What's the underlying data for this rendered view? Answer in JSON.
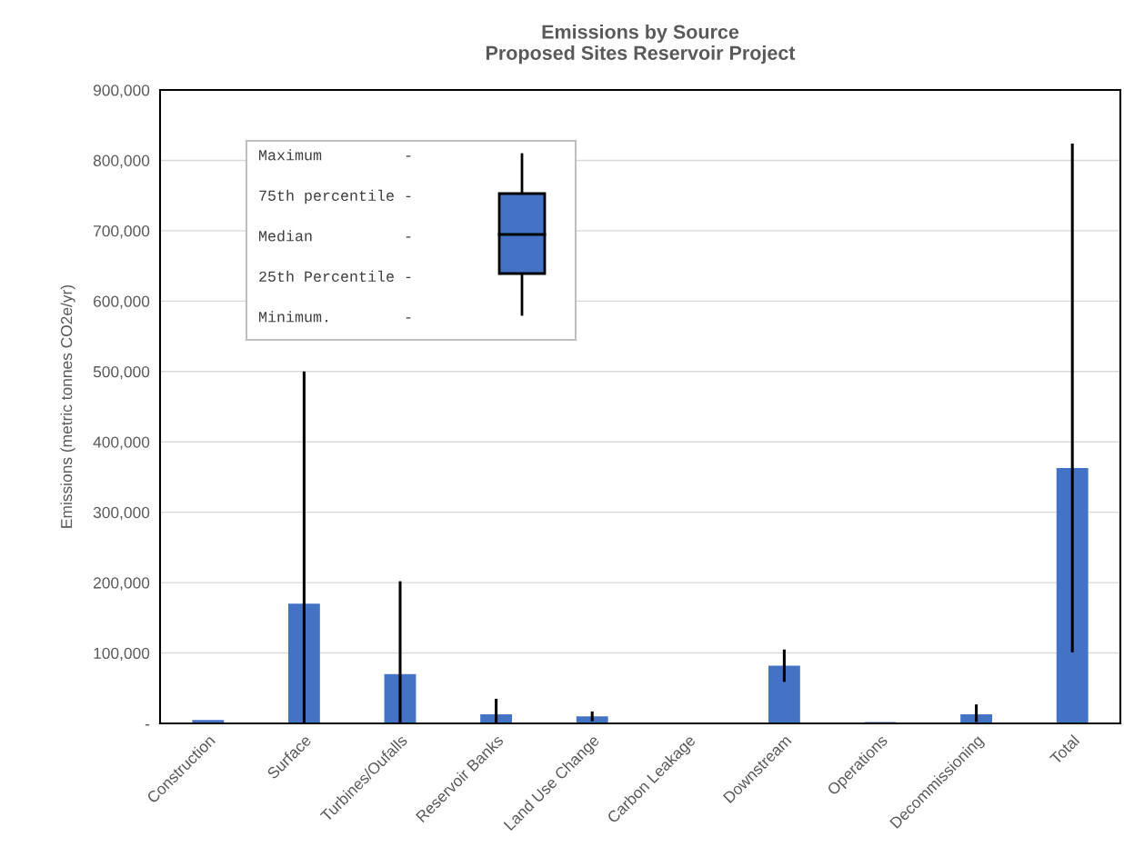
{
  "chart_data": {
    "type": "bar",
    "title": "Emissions by Source\nProposed Sites Reservoir Project",
    "ylabel": "Emissions (metric tonnes CO2e/yr)",
    "categories": [
      "Construction",
      "Surface",
      "Turbines/Oufalls",
      "Reservoir Banks",
      "Land Use Change",
      "Carbon Leakage",
      "Downstream",
      "Operations",
      "Decommissioning",
      "Total"
    ],
    "values": [
      5000,
      170000,
      70000,
      13000,
      10000,
      null,
      82000,
      2000,
      13000,
      363000
    ],
    "errors": [
      null,
      [
        0,
        498000
      ],
      [
        0,
        200000
      ],
      [
        0,
        33000
      ],
      [
        5000,
        15000
      ],
      null,
      [
        61000,
        103000
      ],
      null,
      [
        4000,
        25000
      ],
      [
        103000,
        822000
      ]
    ],
    "color": "#4472c4",
    "ylim": [
      0,
      900000
    ],
    "yticks": [
      {
        "value": 0,
        "label": "-"
      },
      {
        "value": 100000,
        "label": "100,000"
      },
      {
        "value": 200000,
        "label": "200,000"
      },
      {
        "value": 300000,
        "label": "300,000"
      },
      {
        "value": 400000,
        "label": "400,000"
      },
      {
        "value": 500000,
        "label": "500,000"
      },
      {
        "value": 600000,
        "label": "600,000"
      },
      {
        "value": 700000,
        "label": "700,000"
      },
      {
        "value": 800000,
        "label": "800,000"
      },
      {
        "value": 900000,
        "label": "900,000"
      }
    ],
    "grid": "y",
    "annotations": [
      "Maximum         -",
      "75th percentile -",
      "Median          -",
      "25th Percentile -",
      "Minimum.        -"
    ]
  }
}
